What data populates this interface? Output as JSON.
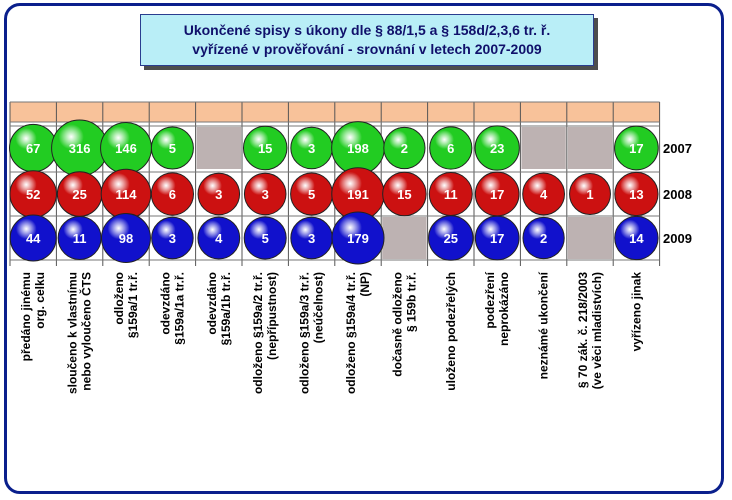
{
  "title": {
    "line1": "Ukončené spisy s úkony dle § 88/1,5 a § 158d/2,3,6 tr. ř.",
    "line2": "vyřízené v prověřování - srovnání v letech 2007-2009"
  },
  "colors": {
    "2007": "#22cc22",
    "2008": "#cc1111",
    "2009": "#1111cc",
    "band": "#f8c29a",
    "empty": "#bdb2b2"
  },
  "chart_data": {
    "type": "bubble-grid",
    "title": "Ukončené spisy s úkony dle § 88/1,5 a § 158d/2,3,6 tr. ř. vyřízené v prověřování - srovnání v letech 2007-2009",
    "categories": [
      "předáno jinému org. celku",
      "sloučeno k vlastnímu nebo vyloučeno ČTS",
      "odloženo §159a/1 tr.ř.",
      "odevzdáno §159a/1a tr.ř.",
      "odevzdáno §159a/1b tr.ř.",
      "odloženo §159a/2 tr.ř. (nepřípustnost)",
      "odloženo §159a/3 tr.ř. (neúčelnost)",
      "odloženo §159a/4 tr.ř. (NP)",
      "dočasně odloženo § 159b tr.ř.",
      "uloženo podezřelých",
      "podezření neprokázáno",
      "neznámé ukončení",
      "§ 70 zák. č. 218/2003 (ve věci mladistvích)",
      "vyřízeno jinak"
    ],
    "category_lines": [
      [
        "předáno jinému",
        "org. celku"
      ],
      [
        "sloučeno k vlastnímu",
        "nebo vyloučeno ČTS"
      ],
      [
        "odloženo",
        "§159a/1 tr.ř."
      ],
      [
        "odevzdáno",
        "§159a/1a tr.ř."
      ],
      [
        "odevzdáno",
        "§159a/1b tr.ř."
      ],
      [
        "odloženo §159a/2 tr.ř.",
        "(nepřípustnost)"
      ],
      [
        "odloženo §159a/3 tr.ř.",
        "(neúčelnost)"
      ],
      [
        "odloženo §159a/4 tr.ř.",
        "(NP)"
      ],
      [
        "dočasně odloženo",
        "§ 159b tr.ř."
      ],
      [
        "uloženo podezřelých"
      ],
      [
        "podezření",
        "neprokázáno"
      ],
      [
        "neznámé ukončení"
      ],
      [
        "§ 70 zák. č. 218/2003",
        "(ve věci mladistvích)"
      ],
      [
        "vyřízeno jinak"
      ]
    ],
    "series": [
      {
        "name": "2007",
        "values": [
          67,
          316,
          146,
          5,
          null,
          15,
          3,
          198,
          2,
          6,
          23,
          null,
          null,
          17
        ]
      },
      {
        "name": "2008",
        "values": [
          52,
          25,
          114,
          6,
          3,
          3,
          5,
          191,
          15,
          11,
          17,
          4,
          1,
          13
        ]
      },
      {
        "name": "2009",
        "values": [
          44,
          11,
          98,
          3,
          4,
          5,
          3,
          179,
          null,
          25,
          17,
          2,
          null,
          14
        ]
      }
    ],
    "legend": "right"
  }
}
